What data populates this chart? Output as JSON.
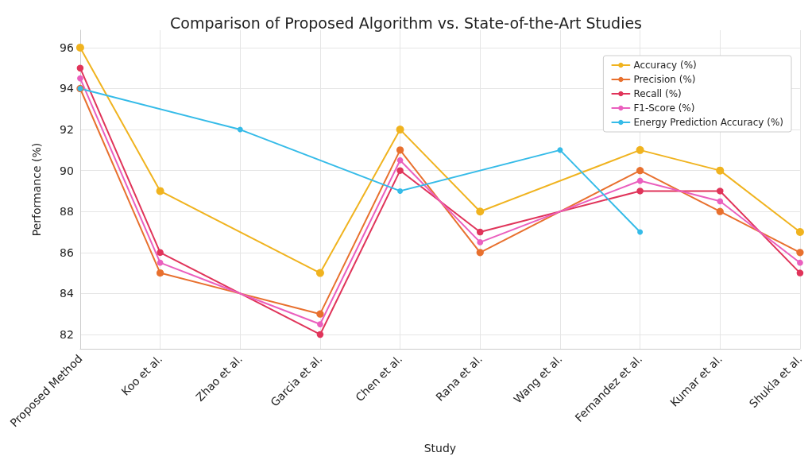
{
  "chart_data": {
    "type": "line",
    "title": "Comparison of Proposed Algorithm vs. State-of-the-Art Studies",
    "xlabel": "Study",
    "ylabel": "Performance (%)",
    "categories": [
      "Proposed Method",
      "Koo et al.",
      "Zhao et al.",
      "Garcia et al.",
      "Chen et al.",
      "Rana et al.",
      "Wang et al.",
      "Fernandez et al.",
      "Kumar et al.",
      "Shukla et al."
    ],
    "series": [
      {
        "name": "Accuracy (%)",
        "color": "#f0b31f",
        "values": [
          96,
          89,
          null,
          85,
          92,
          88,
          null,
          91,
          90,
          87
        ]
      },
      {
        "name": "Precision (%)",
        "color": "#e8702e",
        "values": [
          94,
          85,
          null,
          83,
          91,
          86,
          null,
          90,
          88,
          86
        ]
      },
      {
        "name": "Recall (%)",
        "color": "#e0345a",
        "values": [
          95,
          86,
          null,
          82,
          90,
          87,
          null,
          89,
          89,
          85
        ]
      },
      {
        "name": "F1-Score (%)",
        "color": "#ea5fbe",
        "values": [
          94.5,
          85.5,
          null,
          82.5,
          90.5,
          86.5,
          null,
          89.5,
          88.5,
          85.5
        ]
      },
      {
        "name": "Energy Prediction Accuracy (%)",
        "color": "#35bbe8",
        "values": [
          94,
          null,
          92,
          null,
          89,
          null,
          91,
          87,
          null,
          null
        ]
      }
    ],
    "ylim": [
      81.3,
      96.85
    ],
    "yticks": [
      82,
      84,
      86,
      88,
      90,
      92,
      94,
      96
    ],
    "grid": true,
    "legend": "top right",
    "marker": "circle",
    "line_style": "solid"
  }
}
